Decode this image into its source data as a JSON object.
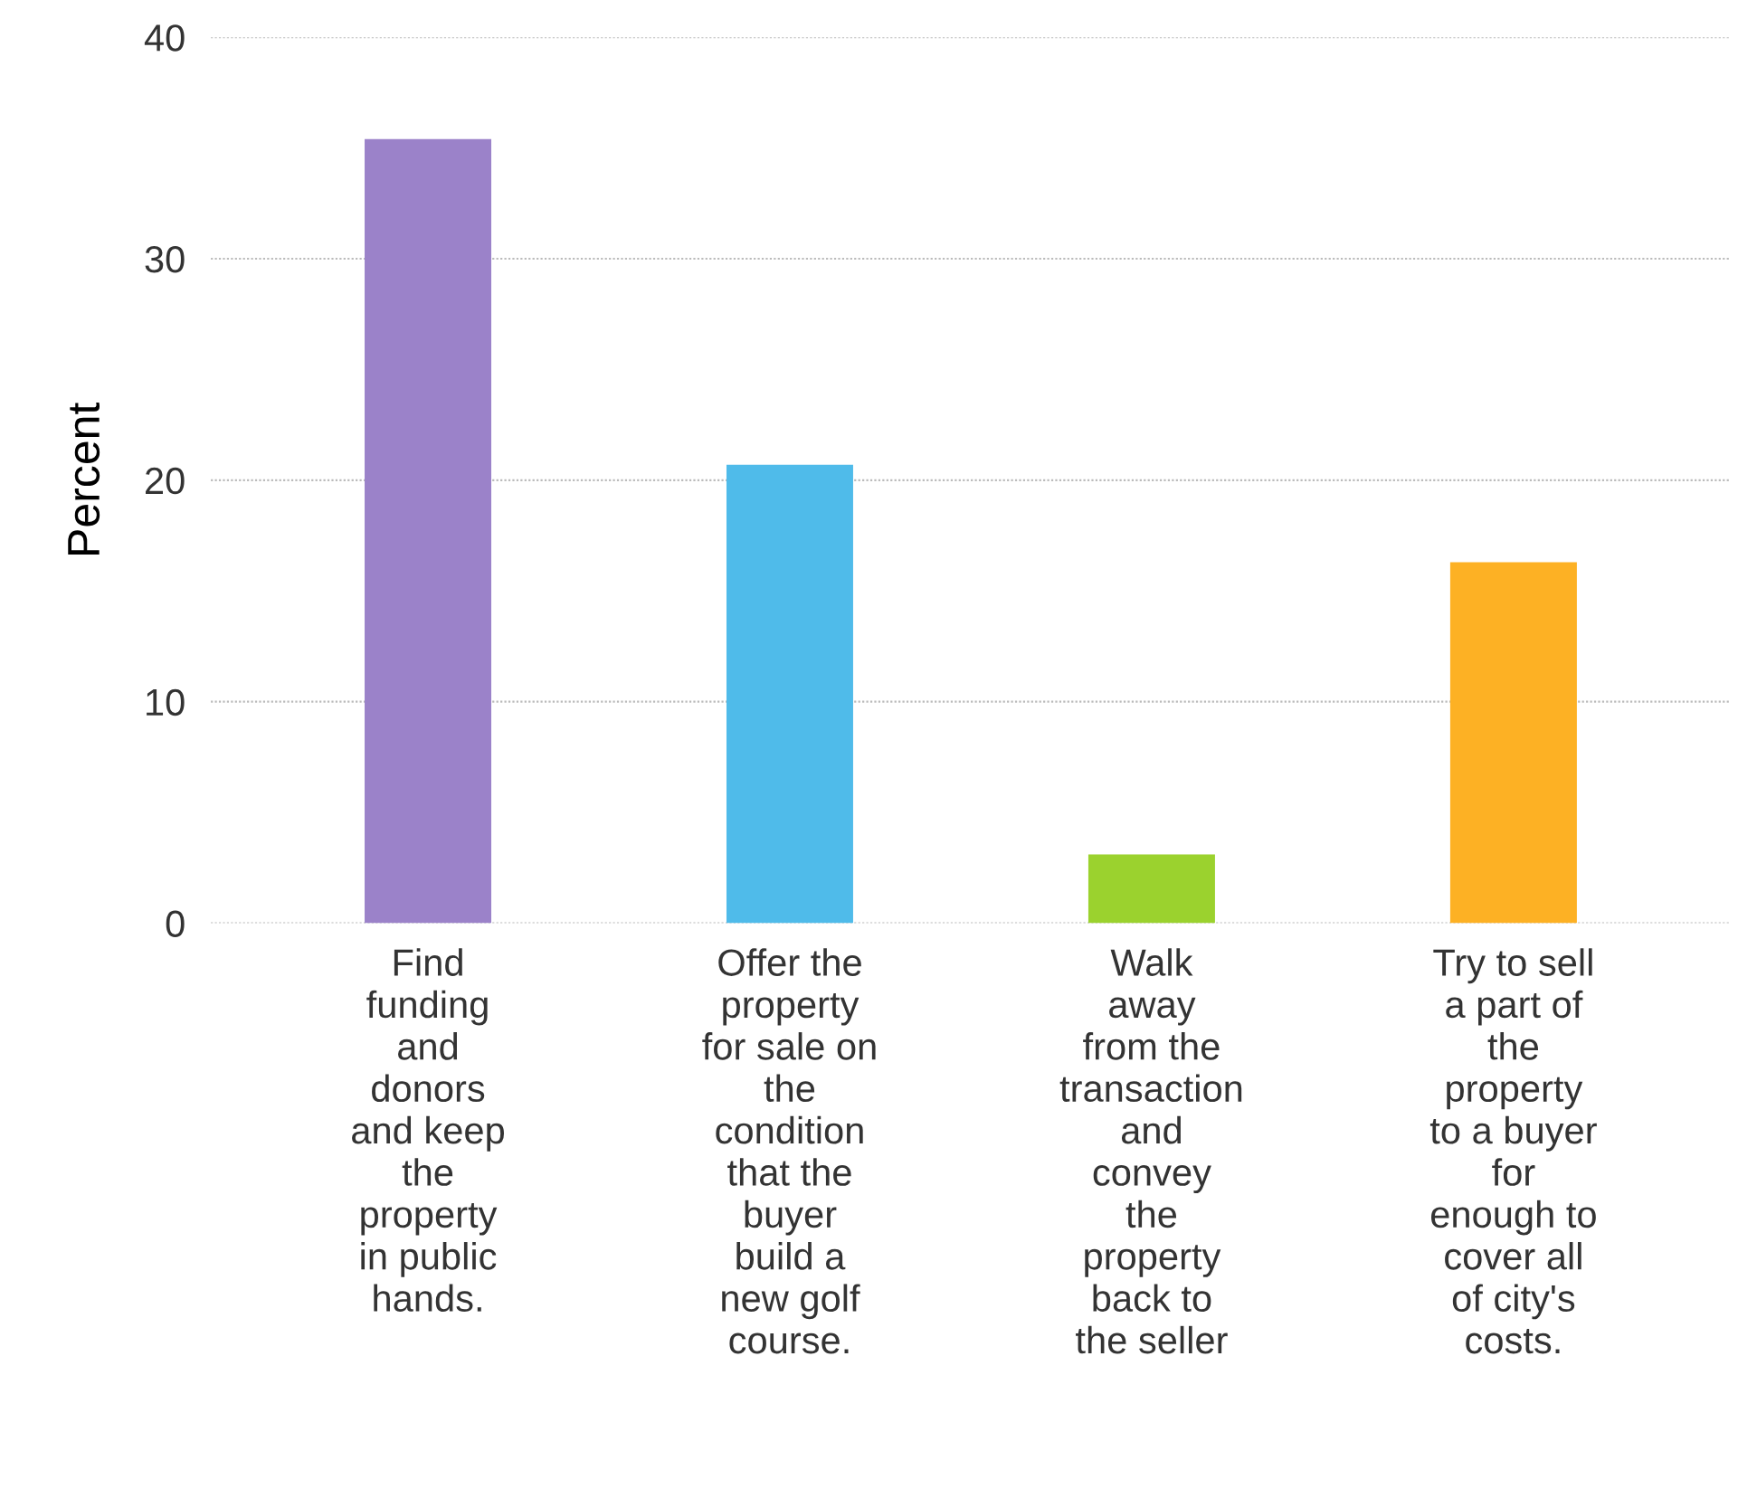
{
  "chart_data": {
    "type": "bar",
    "ylabel": "Percent",
    "categories": [
      "Find\nfunding\nand\ndonors\nand keep\nthe\nproperty\nin public\nhands.",
      "Offer the\nproperty\nfor sale on\nthe\ncondition\nthat the\nbuyer\nbuild a\nnew golf\ncourse.",
      "Walk\naway\nfrom the\ntransaction\nand\nconvey\nthe\nproperty\nback to\nthe seller",
      "Try to sell\na part of\nthe\nproperty\nto a buyer\nfor\nenough to\ncover all\nof city's\ncosts."
    ],
    "values": [
      35.4,
      20.7,
      3.1,
      16.3
    ],
    "colors": [
      "#9b82c9",
      "#4fbbea",
      "#9bd22e",
      "#fdb124"
    ],
    "ylim": [
      0,
      40
    ],
    "yticks": [
      0,
      10,
      20,
      30,
      40
    ],
    "grid": "y"
  }
}
